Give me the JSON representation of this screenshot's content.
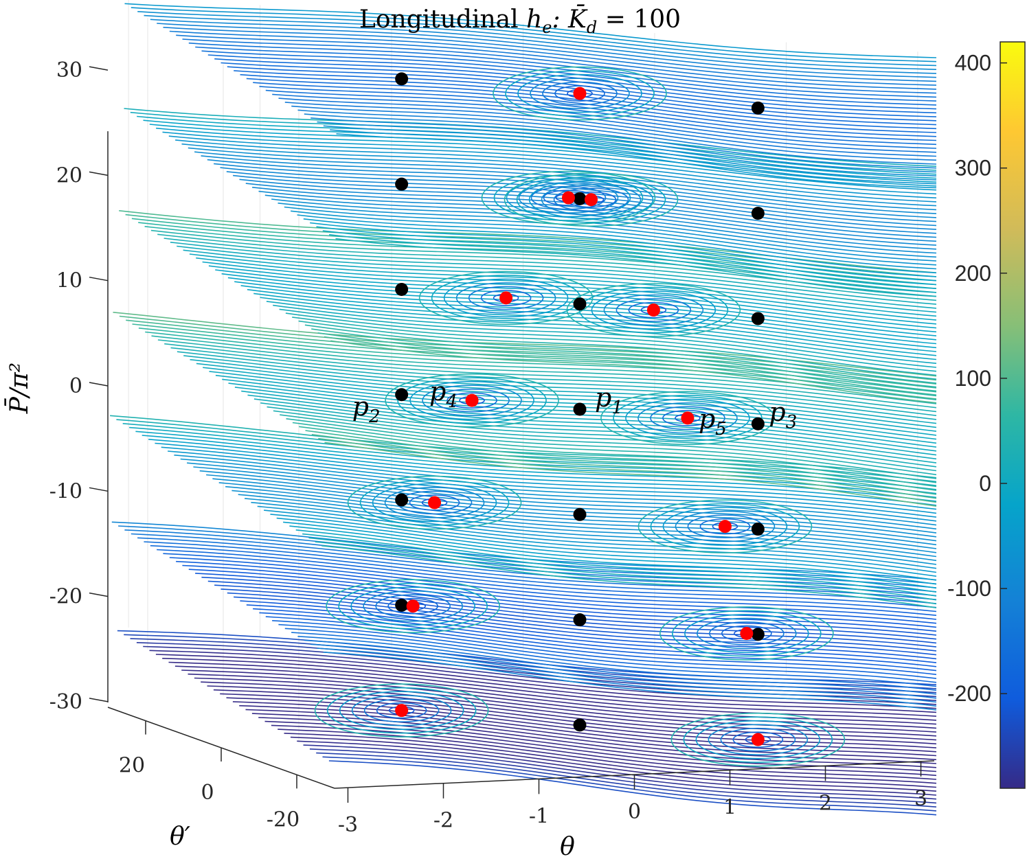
{
  "chart_data": {
    "type": "contour",
    "title": "Longitudinal h_e: K̄_d = 100",
    "xlabel": "θ",
    "ylabel": "θ′",
    "zlabel": "P̄/π²",
    "x_ticks": [
      "-3",
      "-2",
      "-1",
      "0",
      "1",
      "2",
      "3"
    ],
    "x_tick_values": [
      -3,
      -2,
      -1,
      0,
      1,
      2,
      3
    ],
    "xlim": [
      -3.14,
      3.14
    ],
    "y_ticks": [
      "-20",
      "0",
      "20"
    ],
    "y_tick_values": [
      -20,
      0,
      20
    ],
    "ylim": [
      -30,
      30
    ],
    "z_ticks": [
      "-30",
      "-20",
      "-10",
      "0",
      "10",
      "20",
      "30"
    ],
    "z_tick_values": [
      -30,
      -20,
      -10,
      0,
      10,
      20,
      30
    ],
    "zlim": [
      -30,
      30
    ],
    "levels": [
      30,
      20,
      10,
      0,
      -10,
      -20,
      -30
    ],
    "colorbar": {
      "ticks": [
        "400",
        "300",
        "200",
        "100",
        "0",
        "-100",
        "-200"
      ],
      "tick_values": [
        400,
        300,
        200,
        100,
        0,
        -100,
        -200
      ],
      "range": [
        -290,
        420
      ],
      "colormap": "parula"
    },
    "black_points": [
      {
        "level": 30,
        "theta": -1.57,
        "theta_prime": 0
      },
      {
        "level": 30,
        "theta": 1.57,
        "theta_prime": 0
      },
      {
        "level": 20,
        "theta": -1.57,
        "theta_prime": 0
      },
      {
        "level": 20,
        "theta": 0,
        "theta_prime": 0
      },
      {
        "level": 20,
        "theta": 1.57,
        "theta_prime": 0
      },
      {
        "level": 10,
        "theta": -1.57,
        "theta_prime": 0
      },
      {
        "level": 10,
        "theta": 0,
        "theta_prime": 0
      },
      {
        "level": 10,
        "theta": 1.57,
        "theta_prime": 0
      },
      {
        "level": 0,
        "theta": -1.57,
        "theta_prime": 0
      },
      {
        "level": 0,
        "theta": 0,
        "theta_prime": 0
      },
      {
        "level": 0,
        "theta": 1.57,
        "theta_prime": 0
      },
      {
        "level": -10,
        "theta": -1.57,
        "theta_prime": 0
      },
      {
        "level": -10,
        "theta": 0,
        "theta_prime": 0
      },
      {
        "level": -10,
        "theta": 1.57,
        "theta_prime": 0
      },
      {
        "level": -20,
        "theta": -1.57,
        "theta_prime": 0
      },
      {
        "level": -20,
        "theta": 0,
        "theta_prime": 0
      },
      {
        "level": -20,
        "theta": 1.57,
        "theta_prime": 0
      },
      {
        "level": -30,
        "theta": 0,
        "theta_prime": 0
      }
    ],
    "red_points": [
      {
        "level": 30,
        "theta": 0,
        "theta_prime": 0
      },
      {
        "level": 20,
        "theta": -0.1,
        "theta_prime": 0
      },
      {
        "level": 20,
        "theta": 0.1,
        "theta_prime": 0
      },
      {
        "level": 10,
        "theta": -0.65,
        "theta_prime": 0
      },
      {
        "level": 10,
        "theta": 0.65,
        "theta_prime": 0
      },
      {
        "level": 0,
        "theta": -0.95,
        "theta_prime": 0
      },
      {
        "level": 0,
        "theta": 0.95,
        "theta_prime": 0
      },
      {
        "level": -10,
        "theta": -1.28,
        "theta_prime": 0
      },
      {
        "level": -10,
        "theta": 1.28,
        "theta_prime": 0
      },
      {
        "level": -20,
        "theta": -1.47,
        "theta_prime": 0
      },
      {
        "level": -20,
        "theta": 1.47,
        "theta_prime": 0
      },
      {
        "level": -30,
        "theta": -1.57,
        "theta_prime": 0
      },
      {
        "level": -30,
        "theta": 1.57,
        "theta_prime": 0
      }
    ],
    "annotations": [
      {
        "label": "p",
        "sub": "1",
        "level": 0,
        "theta": 0,
        "theta_prime": 0
      },
      {
        "label": "p",
        "sub": "2",
        "level": 0,
        "theta": -1.57,
        "theta_prime": 0
      },
      {
        "label": "p",
        "sub": "3",
        "level": 0,
        "theta": 1.57,
        "theta_prime": 0
      },
      {
        "label": "p",
        "sub": "4",
        "level": 0,
        "theta": -0.95,
        "theta_prime": 0
      },
      {
        "label": "p",
        "sub": "5",
        "level": 0,
        "theta": 0.95,
        "theta_prime": 0
      }
    ]
  },
  "labels": {
    "title_text": "Longitudinal ",
    "title_he": "h",
    "title_he_sub": "e",
    "title_eq": ": K̄",
    "title_eq_sub": "d",
    "title_val": " = 100",
    "zlabel": "P̄/π²",
    "xlabel": "θ",
    "ylabel": "θ′"
  }
}
